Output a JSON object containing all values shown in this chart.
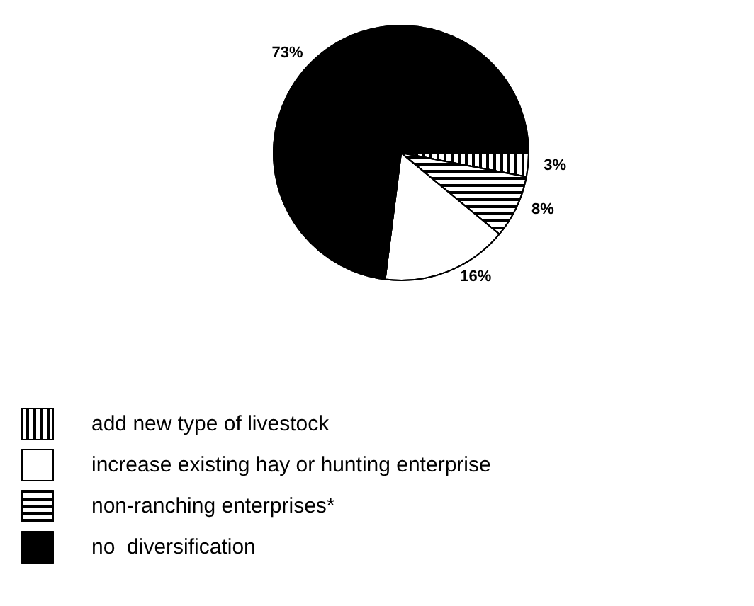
{
  "chart_data": {
    "type": "pie",
    "categories": [
      "add new type of livestock",
      "increase existing hay or hunting enterprise",
      "non-ranching enterprises*",
      "no  diversification"
    ],
    "values": [
      3,
      16,
      8,
      73
    ],
    "colors": [
      "#ffffff",
      "#ffffff",
      "#ffffff",
      "#000000"
    ],
    "value_labels": [
      "3%",
      "16%",
      "8%",
      "73%"
    ],
    "legend": "bottom left"
  }
}
